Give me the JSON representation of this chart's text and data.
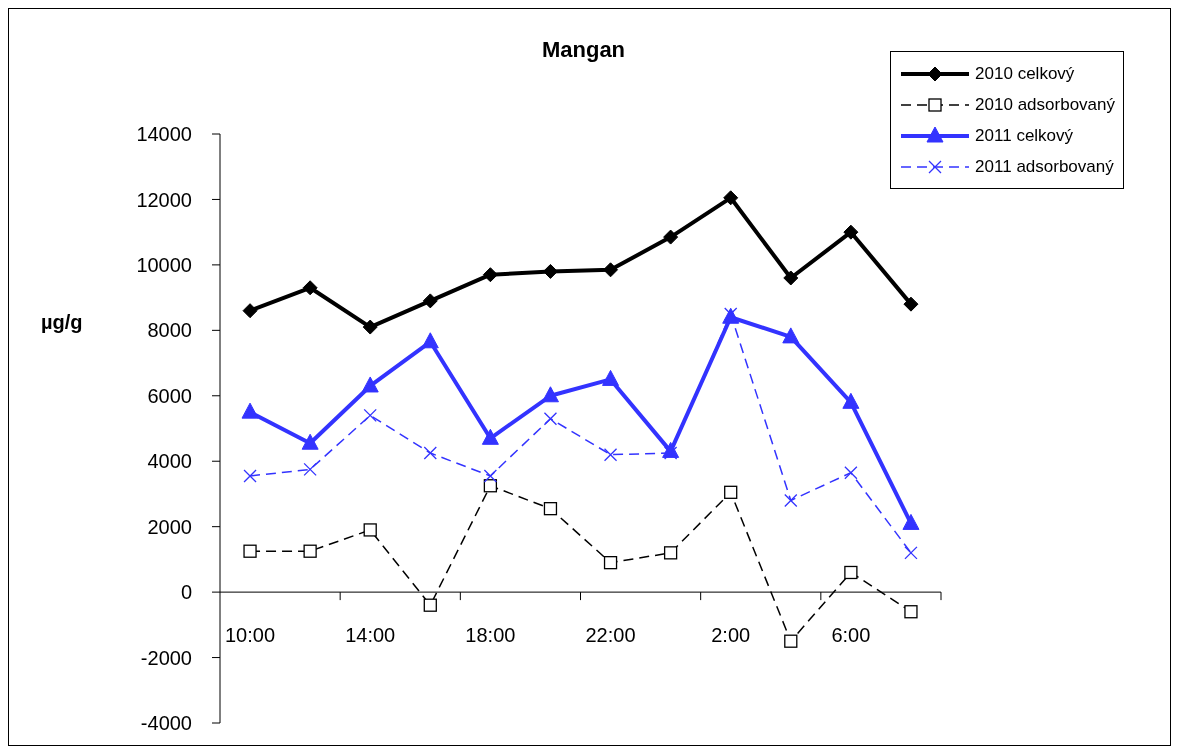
{
  "chart_data": {
    "type": "line",
    "title": "Mangan",
    "ylabel": "µg/g",
    "categories": [
      "10:00",
      null,
      "14:00",
      null,
      "18:00",
      null,
      "22:00",
      null,
      "2:00",
      null,
      "6:00",
      null
    ],
    "series": [
      {
        "name": "2010 celkový",
        "color": "#000000",
        "marker": "diamond",
        "line_style": "solid",
        "values": [
          8600,
          9300,
          8100,
          8900,
          9700,
          9800,
          9850,
          10850,
          12050,
          9600,
          11000,
          8800
        ]
      },
      {
        "name": "2010 adsorbovaný",
        "color": "#000000",
        "marker": "square",
        "line_style": "dashed",
        "values": [
          1250,
          1250,
          1900,
          -400,
          3250,
          2550,
          900,
          1200,
          3050,
          -1500,
          600,
          -600
        ]
      },
      {
        "name": "2011 celkový",
        "color": "#3333ff",
        "marker": "triangle",
        "line_style": "solid",
        "values": [
          5500,
          4550,
          6300,
          7650,
          4700,
          6000,
          6500,
          4300,
          8400,
          7800,
          5800,
          2100
        ]
      },
      {
        "name": "2011 adsorbovaný",
        "color": "#3333ff",
        "marker": "cross",
        "line_style": "dashed",
        "values": [
          3550,
          3750,
          5400,
          4250,
          3550,
          5300,
          4200,
          4250,
          8500,
          2800,
          3650,
          1200
        ]
      }
    ],
    "ylim": [
      -4000,
      14000
    ],
    "yticks": [
      -4000,
      -2000,
      0,
      2000,
      4000,
      6000,
      8000,
      10000,
      12000,
      14000
    ],
    "grid": false,
    "legend": "top right"
  }
}
